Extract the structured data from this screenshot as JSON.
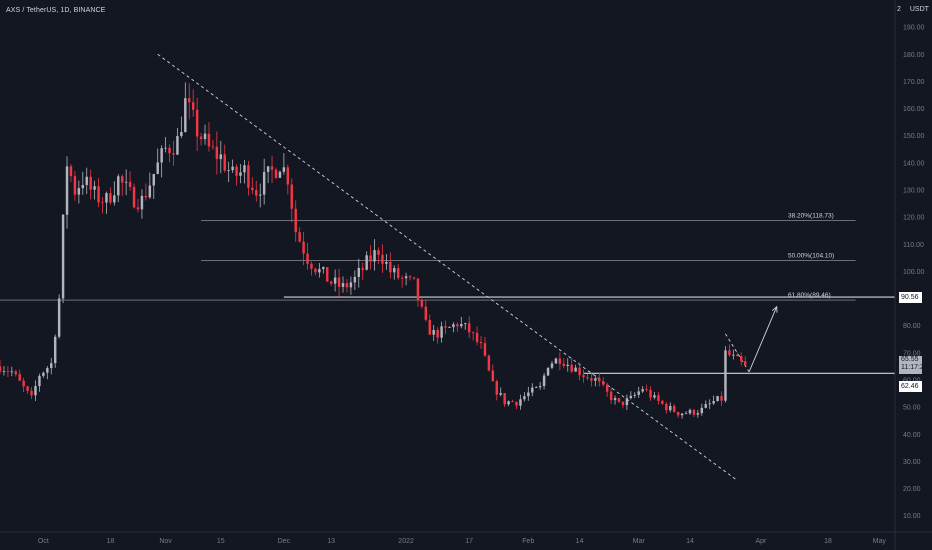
{
  "header": {
    "symbol": "AXS / TetherUS, 1D, BINANCE",
    "top_left_value": "2",
    "currency": "USDT"
  },
  "colors": {
    "background": "#131722",
    "bull": "#b2b5be",
    "bear": "#f23645",
    "line": "#d1d4dc",
    "axis_text": "#787b86"
  },
  "price_tags": {
    "resistance": "90.56",
    "last_price": "65.55",
    "countdown": "11:17:20",
    "support": "62.46"
  },
  "chart_data": {
    "type": "candlestick",
    "symbol": "AXS / TetherUS",
    "interval": "1D",
    "exchange": "BINANCE",
    "y_ticks": [
      10,
      20,
      30,
      40,
      50,
      60,
      70,
      80,
      90,
      100,
      110,
      120,
      130,
      140,
      150,
      160,
      170,
      180,
      190
    ],
    "y_tick_labels": [
      "10.00",
      "20.00",
      "30.00",
      "40.00",
      "50.00",
      "60.00",
      "70.00",
      "80.00",
      "90.00",
      "100.00",
      "110.00",
      "120.00",
      "130.00",
      "140.00",
      "150.00",
      "160.00",
      "170.00",
      "180.00",
      "190.00"
    ],
    "ylim": [
      4,
      200
    ],
    "x_tick_labels": [
      "Oct",
      "18",
      "Nov",
      "15",
      "Dec",
      "13",
      "2022",
      "17",
      "Feb",
      "14",
      "Mar",
      "14",
      "Apr",
      "18",
      "May"
    ],
    "x_tick_dates": [
      "2021-10-01",
      "2021-10-18",
      "2021-11-01",
      "2021-11-15",
      "2021-12-01",
      "2021-12-13",
      "2022-01-01",
      "2022-01-17",
      "2022-02-01",
      "2022-02-14",
      "2022-03-01",
      "2022-03-14",
      "2022-04-01",
      "2022-04-18",
      "2022-05-01"
    ],
    "xlim": [
      "2021-09-20",
      "2022-05-05"
    ],
    "close_path": [
      [
        "2021-09-20",
        65
      ],
      [
        "2021-09-23",
        63
      ],
      [
        "2021-09-26",
        57
      ],
      [
        "2021-09-28",
        53
      ],
      [
        "2021-09-30",
        62
      ],
      [
        "2021-10-03",
        66
      ],
      [
        "2021-10-05",
        90
      ],
      [
        "2021-10-06",
        118
      ],
      [
        "2021-10-07",
        140
      ],
      [
        "2021-10-09",
        130
      ],
      [
        "2021-10-11",
        134
      ],
      [
        "2021-10-14",
        128
      ],
      [
        "2021-10-17",
        126
      ],
      [
        "2021-10-20",
        134
      ],
      [
        "2021-10-23",
        128
      ],
      [
        "2021-10-26",
        126
      ],
      [
        "2021-10-29",
        136
      ],
      [
        "2021-11-01",
        145
      ],
      [
        "2021-11-04",
        148
      ],
      [
        "2021-11-06",
        162
      ],
      [
        "2021-11-09",
        152
      ],
      [
        "2021-11-12",
        145
      ],
      [
        "2021-11-15",
        142
      ],
      [
        "2021-11-18",
        135
      ],
      [
        "2021-11-21",
        137
      ],
      [
        "2021-11-24",
        130
      ],
      [
        "2021-11-27",
        135
      ],
      [
        "2021-11-30",
        140
      ],
      [
        "2021-12-02",
        135
      ],
      [
        "2021-12-04",
        115
      ],
      [
        "2021-12-07",
        105
      ],
      [
        "2021-12-10",
        100
      ],
      [
        "2021-12-13",
        96
      ],
      [
        "2021-12-16",
        94
      ],
      [
        "2021-12-19",
        97
      ],
      [
        "2021-12-22",
        103
      ],
      [
        "2021-12-25",
        108
      ],
      [
        "2021-12-28",
        100
      ],
      [
        "2021-12-31",
        97
      ],
      [
        "2022-01-03",
        95
      ],
      [
        "2022-01-06",
        80
      ],
      [
        "2022-01-08",
        77
      ],
      [
        "2022-01-11",
        78
      ],
      [
        "2022-01-14",
        81
      ],
      [
        "2022-01-17",
        78
      ],
      [
        "2022-01-20",
        72
      ],
      [
        "2022-01-23",
        58
      ],
      [
        "2022-01-26",
        52
      ],
      [
        "2022-01-29",
        52
      ],
      [
        "2022-02-01",
        55
      ],
      [
        "2022-02-04",
        57
      ],
      [
        "2022-02-06",
        66
      ],
      [
        "2022-02-09",
        68
      ],
      [
        "2022-02-12",
        65
      ],
      [
        "2022-02-15",
        62
      ],
      [
        "2022-02-18",
        60
      ],
      [
        "2022-02-21",
        55
      ],
      [
        "2022-02-24",
        51
      ],
      [
        "2022-02-27",
        53
      ],
      [
        "2022-03-02",
        57
      ],
      [
        "2022-03-05",
        53
      ],
      [
        "2022-03-08",
        50
      ],
      [
        "2022-03-11",
        48
      ],
      [
        "2022-03-14",
        48
      ],
      [
        "2022-03-17",
        49
      ],
      [
        "2022-03-20",
        52
      ],
      [
        "2022-03-22",
        53
      ],
      [
        "2022-03-23",
        70
      ],
      [
        "2022-03-25",
        68
      ],
      [
        "2022-03-27",
        66
      ],
      [
        "2022-03-28",
        65.55
      ]
    ],
    "horizontal_lines": [
      {
        "label": "38.20%(118.73)",
        "value": 118.73,
        "from": "2021-11-10",
        "to": "2022-04-25"
      },
      {
        "label": "50.00%(104.10)",
        "value": 104.1,
        "from": "2021-11-10",
        "to": "2022-04-25"
      },
      {
        "label": "61.80%(89.46)",
        "value": 89.46,
        "from": "2021-09-20",
        "to": "2022-04-25"
      },
      {
        "label": "",
        "value": 90.56,
        "from": "2021-12-01",
        "to": "2022-05-05"
      },
      {
        "label": "",
        "value": 62.46,
        "from": "2022-02-15",
        "to": "2022-05-05"
      }
    ],
    "trendlines": [
      {
        "from": [
          "2021-10-30",
          180
        ],
        "to": [
          "2022-03-26",
          23
        ],
        "style": "dashed"
      },
      {
        "from": [
          "2022-03-23",
          77
        ],
        "to": [
          "2022-03-29",
          63
        ],
        "style": "dashed"
      }
    ],
    "arrow": {
      "from": [
        "2022-03-29",
        63
      ],
      "to": [
        "2022-04-05",
        87
      ]
    },
    "grid": false,
    "legend": "none"
  }
}
